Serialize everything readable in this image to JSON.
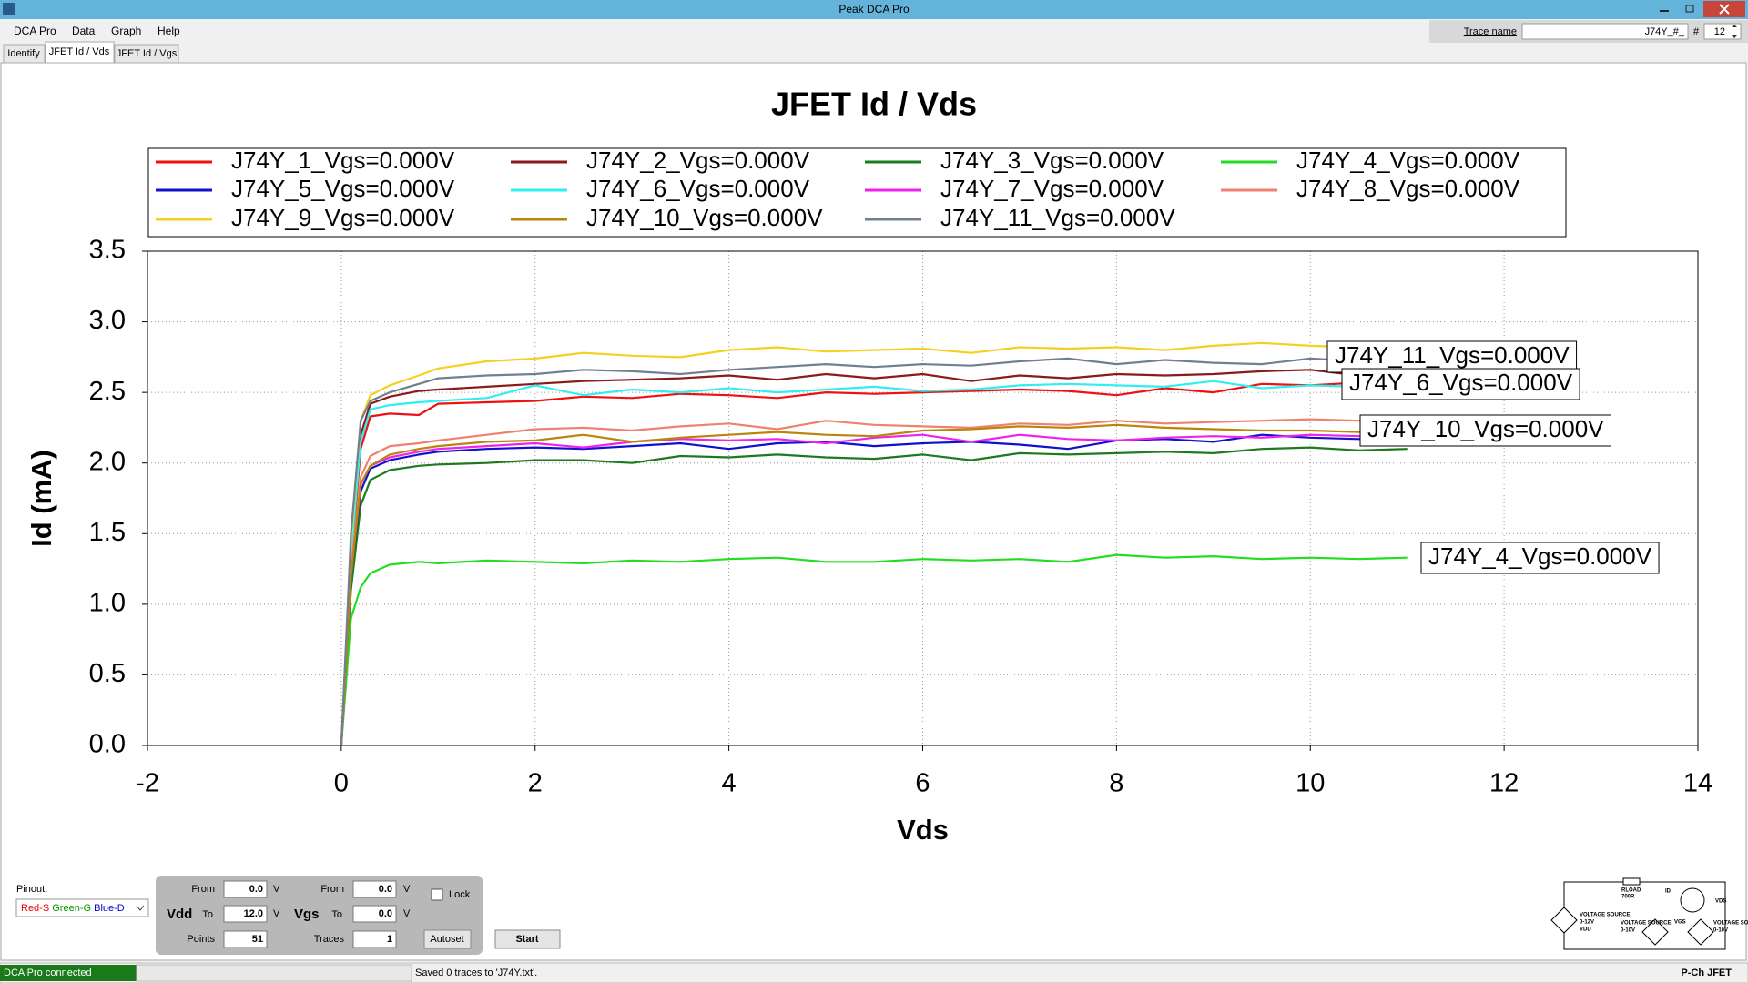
{
  "window": {
    "title": "Peak DCA Pro"
  },
  "menu": [
    "DCA Pro",
    "Data",
    "Graph",
    "Help"
  ],
  "tabs": [
    "Identify",
    "JFET Id / Vds",
    "JFET Id / Vgs"
  ],
  "trace_name": {
    "label": "Trace name",
    "value": "J74Y_#_",
    "number_label": "#",
    "number": "12"
  },
  "controls": {
    "pinout_label": "Pinout:",
    "pinout": [
      "Red-S",
      "Green-G",
      "Blue-D"
    ],
    "vdd": {
      "label": "Vdd",
      "from_label": "From",
      "from": "0.0",
      "to_label": "To",
      "to": "12.0",
      "unit": "V",
      "points_label": "Points",
      "points": "51"
    },
    "vgs": {
      "label": "Vgs",
      "from_label": "From",
      "from": "0.0",
      "to_label": "To",
      "to": "0.0",
      "unit": "V",
      "traces_label": "Traces",
      "traces": "1"
    },
    "lock": "Lock",
    "autoset": "Autoset",
    "start": "Start"
  },
  "circuit": {
    "rload": "RLOAD",
    "rload_value": "700R",
    "id": "ID",
    "vds": "VDS",
    "source_label": "VOLTAGE SOURCE",
    "vdd_range": "0-12V",
    "vdd": "VDD",
    "vgs_range": "0-10V",
    "vgs": "VGS",
    "source3_range": "0-10V"
  },
  "status": {
    "connection": "DCA Pro connected",
    "message": "Saved 0 traces to 'J74Y.txt'.",
    "device": "P-Ch JFET"
  },
  "chart_data": {
    "type": "line",
    "title": "JFET Id / Vds",
    "xlabel": "Vds",
    "ylabel": "Id (mA)",
    "grid": true,
    "xlim": [
      -2,
      14
    ],
    "xticks": [
      -2,
      0,
      2,
      4,
      6,
      8,
      10,
      12,
      14
    ],
    "ylim": [
      0,
      3.5
    ],
    "yticks": [
      {
        "value": 0,
        "label": "0.0"
      },
      {
        "value": 0.5,
        "label": "0.5"
      },
      {
        "value": 1,
        "label": "1.0"
      },
      {
        "value": 1.5,
        "label": "1.5"
      },
      {
        "value": 2,
        "label": "2.0"
      },
      {
        "value": 2.5,
        "label": "2.5"
      },
      {
        "value": 3,
        "label": "3.0"
      },
      {
        "value": 3.5,
        "label": "3.5"
      }
    ],
    "x": [
      0,
      0.1,
      0.2,
      0.3,
      0.5,
      0.8,
      1,
      1.5,
      2,
      2.5,
      3,
      3.5,
      4,
      4.5,
      5,
      5.5,
      6,
      6.5,
      7,
      7.5,
      8,
      8.5,
      9,
      9.5,
      10,
      10.5,
      11
    ],
    "series": [
      {
        "name": "J74Y_1_Vgs=0.000V",
        "color": "#ee1111",
        "values": [
          0,
          1.3,
          2.1,
          2.33,
          2.35,
          2.34,
          2.42,
          2.43,
          2.44,
          2.47,
          2.46,
          2.49,
          2.48,
          2.46,
          2.5,
          2.49,
          2.5,
          2.51,
          2.52,
          2.51,
          2.48,
          2.53,
          2.5,
          2.56,
          2.55,
          2.57,
          2.56
        ]
      },
      {
        "name": "J74Y_2_Vgs=0.000V",
        "color": "#8b1a1a",
        "values": [
          0,
          1.4,
          2.2,
          2.42,
          2.47,
          2.51,
          2.52,
          2.54,
          2.56,
          2.58,
          2.59,
          2.6,
          2.62,
          2.59,
          2.63,
          2.6,
          2.63,
          2.58,
          2.62,
          2.6,
          2.63,
          2.62,
          2.63,
          2.65,
          2.66,
          2.62,
          2.64
        ]
      },
      {
        "name": "J74Y_3_Vgs=0.000V",
        "color": "#1e7a1e",
        "values": [
          0,
          1.1,
          1.7,
          1.88,
          1.95,
          1.98,
          1.99,
          2.0,
          2.02,
          2.02,
          2.0,
          2.05,
          2.04,
          2.06,
          2.04,
          2.03,
          2.06,
          2.02,
          2.07,
          2.06,
          2.07,
          2.08,
          2.07,
          2.1,
          2.11,
          2.09,
          2.1
        ]
      },
      {
        "name": "J74Y_4_Vgs=0.000V",
        "color": "#22dd22",
        "values": [
          0,
          0.9,
          1.12,
          1.22,
          1.28,
          1.3,
          1.29,
          1.31,
          1.3,
          1.29,
          1.31,
          1.3,
          1.32,
          1.33,
          1.3,
          1.3,
          1.32,
          1.31,
          1.32,
          1.3,
          1.35,
          1.33,
          1.34,
          1.32,
          1.33,
          1.32,
          1.33
        ]
      },
      {
        "name": "J74Y_5_Vgs=0.000V",
        "color": "#1111cc",
        "values": [
          0,
          1.2,
          1.8,
          1.96,
          2.02,
          2.06,
          2.08,
          2.1,
          2.11,
          2.1,
          2.12,
          2.14,
          2.1,
          2.14,
          2.15,
          2.12,
          2.14,
          2.15,
          2.13,
          2.1,
          2.16,
          2.17,
          2.15,
          2.2,
          2.18,
          2.17,
          2.19
        ]
      },
      {
        "name": "J74Y_6_Vgs=0.000V",
        "color": "#33eeee",
        "values": [
          0,
          1.35,
          2.15,
          2.38,
          2.41,
          2.43,
          2.44,
          2.46,
          2.55,
          2.48,
          2.52,
          2.5,
          2.53,
          2.5,
          2.52,
          2.54,
          2.51,
          2.52,
          2.55,
          2.56,
          2.55,
          2.54,
          2.58,
          2.53,
          2.55,
          2.54,
          2.53
        ]
      },
      {
        "name": "J74Y_7_Vgs=0.000V",
        "color": "#ee22ee",
        "values": [
          0,
          1.2,
          1.85,
          1.98,
          2.04,
          2.08,
          2.1,
          2.12,
          2.14,
          2.11,
          2.15,
          2.17,
          2.16,
          2.17,
          2.14,
          2.18,
          2.2,
          2.15,
          2.2,
          2.17,
          2.16,
          2.18,
          2.19,
          2.18,
          2.2,
          2.19,
          2.21
        ]
      },
      {
        "name": "J74Y_8_Vgs=0.000V",
        "color": "#f08070",
        "values": [
          0,
          1.25,
          1.9,
          2.05,
          2.12,
          2.14,
          2.16,
          2.2,
          2.24,
          2.25,
          2.23,
          2.26,
          2.28,
          2.24,
          2.3,
          2.27,
          2.26,
          2.25,
          2.28,
          2.27,
          2.3,
          2.28,
          2.29,
          2.3,
          2.31,
          2.3,
          2.3
        ]
      },
      {
        "name": "J74Y_9_Vgs=0.000V",
        "color": "#f5d020",
        "values": [
          0,
          1.45,
          2.3,
          2.48,
          2.55,
          2.62,
          2.67,
          2.72,
          2.74,
          2.78,
          2.76,
          2.75,
          2.8,
          2.82,
          2.79,
          2.8,
          2.81,
          2.78,
          2.82,
          2.81,
          2.82,
          2.8,
          2.83,
          2.85,
          2.83,
          2.82,
          2.8
        ]
      },
      {
        "name": "J74Y_10_Vgs=0.000V",
        "color": "#b8860b",
        "values": [
          0,
          1.2,
          1.85,
          1.98,
          2.06,
          2.1,
          2.12,
          2.15,
          2.16,
          2.2,
          2.15,
          2.18,
          2.2,
          2.22,
          2.2,
          2.19,
          2.23,
          2.24,
          2.26,
          2.25,
          2.27,
          2.25,
          2.24,
          2.23,
          2.23,
          2.22,
          2.23
        ]
      },
      {
        "name": "J74Y_11_Vgs=0.000V",
        "color": "#708090",
        "values": [
          0,
          1.5,
          2.3,
          2.44,
          2.5,
          2.56,
          2.6,
          2.62,
          2.63,
          2.66,
          2.65,
          2.63,
          2.66,
          2.68,
          2.7,
          2.68,
          2.7,
          2.69,
          2.72,
          2.74,
          2.7,
          2.73,
          2.71,
          2.7,
          2.74,
          2.72,
          2.73
        ]
      }
    ]
  }
}
